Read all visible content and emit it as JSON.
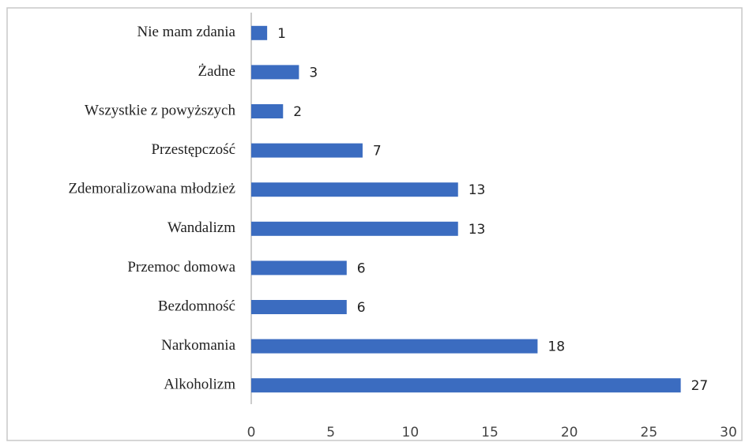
{
  "chart_data": {
    "type": "bar",
    "orientation": "horizontal",
    "categories": [
      "Nie mam zdania",
      "Żadne",
      "Wszystkie z powyższych",
      "Przestępczość",
      "Zdemoralizowana młodzież",
      "Wandalizm",
      "Przemoc domowa",
      "Bezdomność",
      "Narkomania",
      "Alkoholizm"
    ],
    "values": [
      1,
      3,
      2,
      7,
      13,
      13,
      6,
      6,
      18,
      27
    ],
    "color": "#3b6cc0",
    "xlim": [
      0,
      30
    ],
    "xticks": [
      0,
      5,
      10,
      15,
      20,
      25,
      30
    ],
    "grid": false
  }
}
